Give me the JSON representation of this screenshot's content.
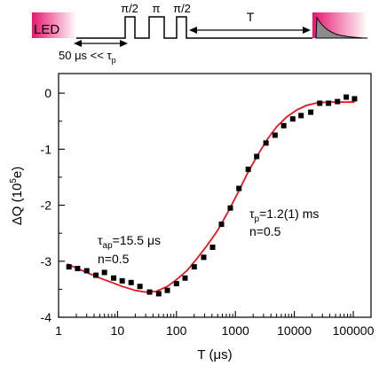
{
  "colors": {
    "fit": "#e8141c",
    "data": "#000000",
    "led_start": "#e8146e",
    "led_end": "#ffffff",
    "signal_fill": "#8c8c8c"
  },
  "sequence": {
    "led_label": "LED",
    "pulse_labels": [
      "π/2",
      "π",
      "π/2"
    ],
    "delay_label": "T",
    "spacing_label_main": "50 μs << τ",
    "spacing_label_sub": "p"
  },
  "annotations": {
    "left_line1_main": "τ",
    "left_line1_sub": "ap",
    "left_line1_rest": "=15.5 μs",
    "left_line2": "n=0.5",
    "right_line1_main": "τ",
    "right_line1_sub": "p",
    "right_line1_rest": "=1.2(1) ms",
    "right_line2": "n=0.5"
  },
  "chart_data": {
    "type": "scatter",
    "xlabel": "T (μs)",
    "ylabel_main": "ΔQ (10",
    "ylabel_sup": "5",
    "ylabel_end": "e)",
    "x_scale": "log",
    "xlim": [
      1,
      200000
    ],
    "ylim": [
      -4,
      0.35
    ],
    "x_ticks": [
      {
        "value": 1,
        "label": "1"
      },
      {
        "value": 10,
        "label": "10"
      },
      {
        "value": 100,
        "label": "100"
      },
      {
        "value": 1000,
        "label": "1000"
      },
      {
        "value": 10000,
        "label": "10000"
      },
      {
        "value": 100000,
        "label": "100000"
      }
    ],
    "y_ticks": [
      {
        "value": 0,
        "label": "0"
      },
      {
        "value": -1,
        "label": "-1"
      },
      {
        "value": -2,
        "label": "-2"
      },
      {
        "value": -3,
        "label": "-3"
      },
      {
        "value": -4,
        "label": "-4"
      }
    ],
    "points": [
      [
        1.5,
        -3.1
      ],
      [
        2.1,
        -3.13
      ],
      [
        3.0,
        -3.17
      ],
      [
        4.3,
        -3.25
      ],
      [
        6.0,
        -3.2
      ],
      [
        8.6,
        -3.3
      ],
      [
        12.0,
        -3.35
      ],
      [
        17.0,
        -3.38
      ],
      [
        24.0,
        -3.45
      ],
      [
        35.0,
        -3.55
      ],
      [
        50.0,
        -3.58
      ],
      [
        70.0,
        -3.52
      ],
      [
        100.0,
        -3.4
      ],
      [
        140.0,
        -3.3
      ],
      [
        200.0,
        -3.1
      ],
      [
        290.0,
        -2.93
      ],
      [
        410.0,
        -2.75
      ],
      [
        580.0,
        -2.34
      ],
      [
        820.0,
        -2.05
      ],
      [
        1150.0,
        -1.7
      ],
      [
        1650.0,
        -1.36
      ],
      [
        2300.0,
        -1.13
      ],
      [
        3300.0,
        -0.89
      ],
      [
        4700.0,
        -0.75
      ],
      [
        6600.0,
        -0.58
      ],
      [
        9400.0,
        -0.46
      ],
      [
        13000.0,
        -0.4
      ],
      [
        19000.0,
        -0.34
      ],
      [
        27000.0,
        -0.18
      ],
      [
        38000.0,
        -0.18
      ],
      [
        54000.0,
        -0.15
      ],
      [
        76000.0,
        -0.07
      ],
      [
        105000.0,
        -0.1
      ]
    ],
    "fit_curve": [
      [
        1.4,
        -3.05
      ],
      [
        2.0,
        -3.12
      ],
      [
        3.0,
        -3.2
      ],
      [
        5.0,
        -3.3
      ],
      [
        8.0,
        -3.38
      ],
      [
        12.0,
        -3.45
      ],
      [
        20.0,
        -3.52
      ],
      [
        30.0,
        -3.55
      ],
      [
        45.0,
        -3.54
      ],
      [
        70.0,
        -3.45
      ],
      [
        100.0,
        -3.33
      ],
      [
        150.0,
        -3.17
      ],
      [
        220.0,
        -2.96
      ],
      [
        330.0,
        -2.72
      ],
      [
        500.0,
        -2.45
      ],
      [
        750.0,
        -2.12
      ],
      [
        1100.0,
        -1.78
      ],
      [
        1600.0,
        -1.43
      ],
      [
        2400.0,
        -1.1
      ],
      [
        3500.0,
        -0.82
      ],
      [
        5000.0,
        -0.6
      ],
      [
        7500.0,
        -0.42
      ],
      [
        11000.0,
        -0.3
      ],
      [
        16000.0,
        -0.22
      ],
      [
        25000.0,
        -0.17
      ],
      [
        40000.0,
        -0.16
      ],
      [
        70000.0,
        -0.16
      ],
      [
        105000.0,
        -0.16
      ]
    ]
  }
}
